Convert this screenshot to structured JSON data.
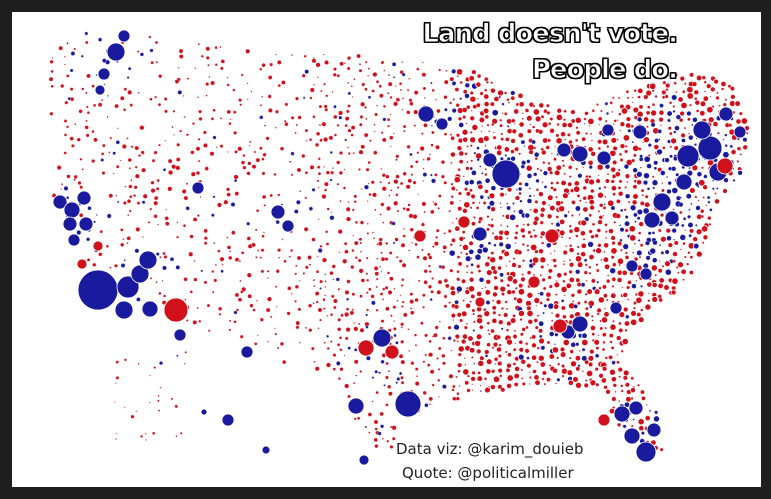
{
  "headline": {
    "line1": "Land doesn't vote.",
    "line2": "People do."
  },
  "credits": {
    "data_viz": "Data viz: @karim_douieb",
    "quote": "Quote: @politicalmiller"
  },
  "colors": {
    "republican": "#d0101a",
    "democrat": "#1a1a9e",
    "background": "#ffffff",
    "frame": "#1e1e1e"
  }
}
